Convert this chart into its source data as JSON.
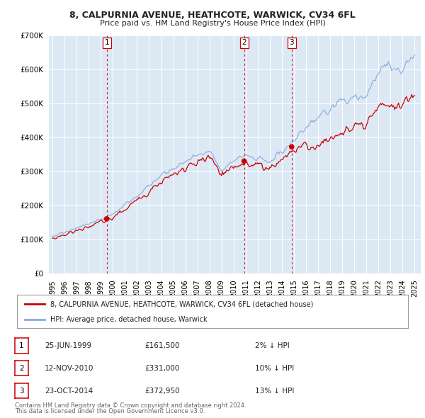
{
  "title": "8, CALPURNIA AVENUE, HEATHCOTE, WARWICK, CV34 6FL",
  "subtitle": "Price paid vs. HM Land Registry's House Price Index (HPI)",
  "background_color": "#ffffff",
  "plot_bg_color": "#dce9f5",
  "grid_color": "#ffffff",
  "red_line_color": "#cc0000",
  "blue_line_color": "#88aadd",
  "legend_label_red": "8, CALPURNIA AVENUE, HEATHCOTE, WARWICK, CV34 6FL (detached house)",
  "legend_label_blue": "HPI: Average price, detached house, Warwick",
  "sale_dates": [
    1999.49,
    2010.87,
    2014.81
  ],
  "sale_prices": [
    161500,
    331000,
    372950
  ],
  "sale_labels": [
    "1",
    "2",
    "3"
  ],
  "table_rows": [
    [
      "1",
      "25-JUN-1999",
      "£161,500",
      "2% ↓ HPI"
    ],
    [
      "2",
      "12-NOV-2010",
      "£331,000",
      "10% ↓ HPI"
    ],
    [
      "3",
      "23-OCT-2014",
      "£372,950",
      "13% ↓ HPI"
    ]
  ],
  "footer_line1": "Contains HM Land Registry data © Crown copyright and database right 2024.",
  "footer_line2": "This data is licensed under the Open Government Licence v3.0.",
  "ylim": [
    0,
    700000
  ],
  "yticks": [
    0,
    100000,
    200000,
    300000,
    400000,
    500000,
    600000,
    700000
  ],
  "ytick_labels": [
    "£0",
    "£100K",
    "£200K",
    "£300K",
    "£400K",
    "£500K",
    "£600K",
    "£700K"
  ],
  "xlim_start": 1994.7,
  "xlim_end": 2025.5,
  "xtick_years": [
    1995,
    1996,
    1997,
    1998,
    1999,
    2000,
    2001,
    2002,
    2003,
    2004,
    2005,
    2006,
    2007,
    2008,
    2009,
    2010,
    2011,
    2012,
    2013,
    2014,
    2015,
    2016,
    2017,
    2018,
    2019,
    2020,
    2021,
    2022,
    2023,
    2024,
    2025
  ]
}
